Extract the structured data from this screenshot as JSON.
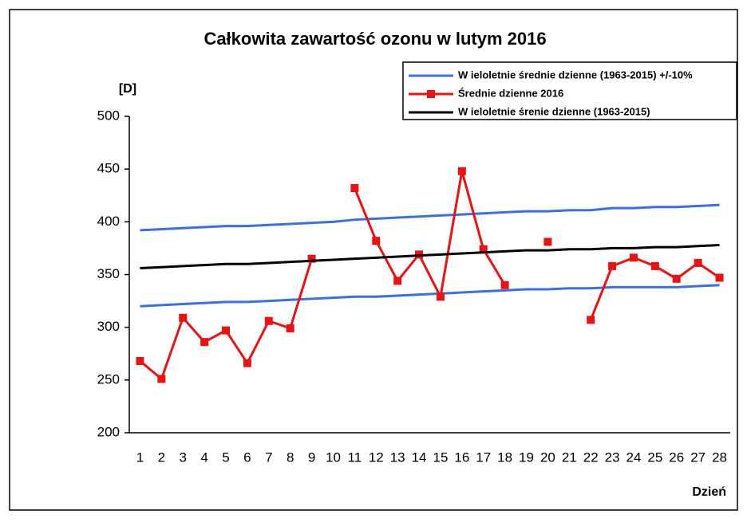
{
  "chart_data": {
    "type": "line",
    "title": "Całkowita zawartość ozonu w lutym 2016",
    "y_label": "[D]",
    "x_label": "Dzień",
    "categories": [
      "1",
      "2",
      "3",
      "4",
      "5",
      "6",
      "7",
      "8",
      "9",
      "10",
      "11",
      "12",
      "13",
      "14",
      "15",
      "16",
      "17",
      "18",
      "19",
      "20",
      "21",
      "22",
      "23",
      "24",
      "25",
      "26",
      "27",
      "28"
    ],
    "ylim": [
      200,
      500
    ],
    "yticks": [
      200,
      250,
      300,
      350,
      400,
      450,
      500
    ],
    "series": [
      {
        "name": "W ieloletnie średnie dzienne (1963-2015) +/-10%",
        "color": "#3a6fe8",
        "values": [
          392,
          393,
          394,
          395,
          396,
          396,
          397,
          398,
          399,
          400,
          402,
          403,
          404,
          405,
          406,
          407,
          408,
          409,
          410,
          410,
          411,
          411,
          413,
          413,
          414,
          414,
          415,
          416
        ],
        "lower": [
          320,
          321,
          322,
          323,
          324,
          324,
          325,
          326,
          327,
          328,
          329,
          329,
          330,
          331,
          332,
          333,
          334,
          335,
          336,
          336,
          337,
          337,
          338,
          338,
          338,
          338,
          339,
          340
        ]
      },
      {
        "name": "Średnie dzienne 2016",
        "color": "#ee1111",
        "marker": "square",
        "values": [
          268,
          251,
          309,
          286,
          297,
          266,
          306,
          299,
          365,
          null,
          432,
          382,
          344,
          369,
          329,
          448,
          374,
          340,
          null,
          381,
          null,
          307,
          358,
          366,
          358,
          346,
          361,
          347
        ]
      },
      {
        "name": "W ieloletnie śrenie dzienne (1963-2015)",
        "color": "#000000",
        "values": [
          356,
          357,
          358,
          359,
          360,
          360,
          361,
          362,
          363,
          364,
          365,
          366,
          367,
          368,
          369,
          370,
          371,
          372,
          373,
          373,
          374,
          374,
          375,
          375,
          376,
          376,
          377,
          378
        ]
      }
    ]
  }
}
